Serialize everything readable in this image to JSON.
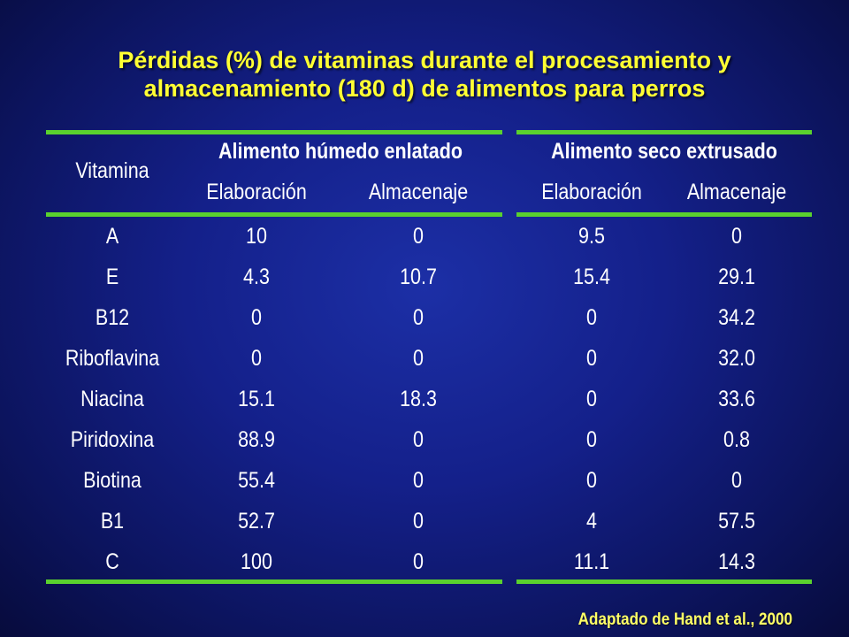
{
  "title": {
    "line1": "Pérdidas (%) de vitaminas durante el procesamiento y",
    "line2": "almacenamiento (180 d) de alimentos para perros"
  },
  "table": {
    "vitamin_header": "Vitamina",
    "group_wet": "Alimento húmedo enlatado",
    "group_dry": "Alimento seco extrusado",
    "sub_headers": [
      "Elaboración",
      "Almacenaje",
      "Elaboración",
      "Almacenaje"
    ],
    "rows": [
      [
        "A",
        "10",
        "0",
        "9.5",
        "0"
      ],
      [
        "E",
        "4.3",
        "10.7",
        "15.4",
        "29.1"
      ],
      [
        "B12",
        "0",
        "0",
        "0",
        "34.2"
      ],
      [
        "Riboflavina",
        "0",
        "0",
        "0",
        "32.0"
      ],
      [
        "Niacina",
        "15.1",
        "18.3",
        "0",
        "33.6"
      ],
      [
        "Piridoxina",
        "88.9",
        "0",
        "0",
        "0.8"
      ],
      [
        "Biotina",
        "55.4",
        "0",
        "0",
        "0"
      ],
      [
        "B1",
        "52.7",
        "0",
        "4",
        "57.5"
      ],
      [
        "C",
        "100",
        "0",
        "11.1",
        "14.3"
      ]
    ]
  },
  "credit": "Adaptado de Hand et al., 2000",
  "colors": {
    "title": "#ffff33",
    "rule": "#5ad12e",
    "background": "#14208a",
    "text": "#ffffff"
  }
}
